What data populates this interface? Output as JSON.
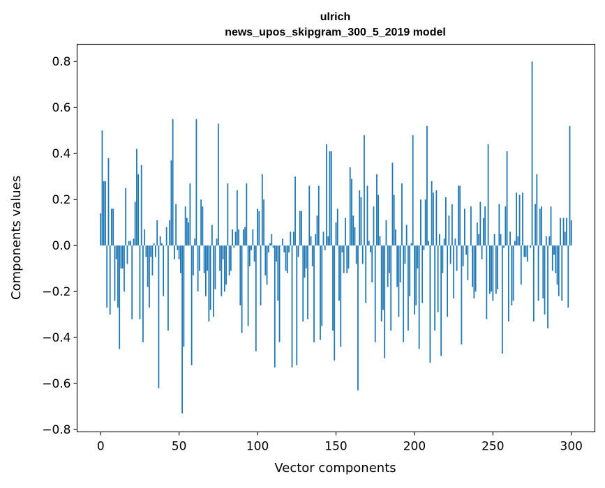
{
  "chart_data": {
    "type": "bar",
    "title": "ulrich",
    "subtitle": "news_upos_skipgram_300_5_2019 model",
    "xlabel": "Vector components",
    "ylabel": "Components values",
    "xlim": [
      -15,
      315
    ],
    "ylim": [
      -0.81,
      0.875
    ],
    "xticks": [
      0,
      50,
      100,
      150,
      200,
      250,
      300
    ],
    "yticks": [
      -0.8,
      -0.6,
      -0.4,
      -0.2,
      0.0,
      0.2,
      0.4,
      0.6,
      0.8
    ],
    "ytick_labels": [
      "−0.8",
      "−0.6",
      "−0.4",
      "−0.2",
      "0.0",
      "0.2",
      "0.4",
      "0.6",
      "0.8"
    ],
    "bar_color": "#1f77b4",
    "values": [
      0.14,
      0.5,
      0.28,
      0.28,
      -0.27,
      0.38,
      -0.3,
      0.16,
      0.16,
      -0.24,
      -0.06,
      -0.27,
      -0.45,
      -0.1,
      -0.1,
      -0.2,
      0.25,
      -0.08,
      0.02,
      0.02,
      -0.32,
      0.03,
      0.19,
      0.42,
      0.31,
      -0.32,
      0.35,
      -0.42,
      0.07,
      -0.05,
      -0.18,
      -0.27,
      -0.05,
      -0.13,
      0.01,
      -0.05,
      0.11,
      -0.62,
      0.04,
      0.01,
      -0.22,
      0.0,
      0.08,
      -0.37,
      0.11,
      0.37,
      0.55,
      -0.06,
      0.18,
      -0.02,
      -0.06,
      -0.12,
      -0.73,
      -0.44,
      0.17,
      0.12,
      0.1,
      0.27,
      -0.52,
      -0.13,
      0.03,
      0.55,
      -0.2,
      -0.11,
      0.2,
      0.17,
      -0.12,
      -0.22,
      -0.11,
      -0.33,
      -0.28,
      0.09,
      -0.31,
      -0.19,
      0.03,
      0.53,
      -0.11,
      -0.22,
      -0.06,
      -0.2,
      -0.17,
      0.27,
      -0.13,
      -0.11,
      0.07,
      -0.01,
      0.06,
      0.24,
      0.07,
      -0.26,
      -0.38,
      0.07,
      0.08,
      0.27,
      -0.35,
      -0.09,
      -0.02,
      0.07,
      -0.07,
      -0.46,
      0.16,
      0.15,
      -0.26,
      0.31,
      0.2,
      -0.13,
      -0.17,
      -0.03,
      0.01,
      0.05,
      -0.01,
      -0.53,
      -0.07,
      -0.24,
      -0.42,
      0.0,
      0.03,
      -0.03,
      -0.11,
      -0.12,
      -0.03,
      0.06,
      -0.53,
      0.06,
      0.3,
      -0.52,
      -0.05,
      0.15,
      0.15,
      -0.33,
      -0.14,
      -0.1,
      -0.32,
      0.26,
      0.04,
      -0.09,
      -0.42,
      0.05,
      0.13,
      0.26,
      -0.41,
      -0.35,
      0.06,
      -0.02,
      0.44,
      0.04,
      0.41,
      0.41,
      -0.37,
      -0.5,
      0.1,
      0.16,
      -0.24,
      -0.44,
      -0.03,
      -0.12,
      0.12,
      -0.12,
      -0.1,
      0.34,
      0.29,
      0.13,
      0.08,
      -0.08,
      -0.63,
      0.24,
      0.21,
      -0.08,
      0.48,
      -0.25,
      0.26,
      0.02,
      -0.03,
      -0.16,
      0.17,
      -0.42,
      0.31,
      0.22,
      0.04,
      -0.33,
      -0.28,
      -0.49,
      0.11,
      -0.18,
      -0.12,
      -0.37,
      0.36,
      0.22,
      0.07,
      -0.18,
      -0.31,
      -0.16,
      0.27,
      -0.42,
      -0.08,
      0.09,
      -0.37,
      -0.22,
      0.01,
      0.48,
      -0.3,
      -0.26,
      -0.1,
      -0.45,
      0.2,
      -0.25,
      -0.02,
      0.2,
      0.52,
      0.02,
      -0.51,
      0.28,
      0.23,
      -0.37,
      0.24,
      -0.29,
      0.05,
      -0.48,
      -0.12,
      0.03,
      0.21,
      -0.31,
      0.13,
      -0.08,
      0.18,
      -0.23,
      0.03,
      -0.11,
      0.26,
      0.26,
      -0.43,
      -0.09,
      0.16,
      -0.04,
      -0.15,
      0.0,
      0.17,
      -0.18,
      -0.23,
      -0.2,
      0.1,
      0.05,
      0.19,
      -0.06,
      0.12,
      0.17,
      -0.32,
      0.44,
      -0.21,
      -0.2,
      -0.24,
      0.05,
      -0.21,
      -0.19,
      0.18,
      0.05,
      -0.47,
      -0.01,
      0.17,
      0.41,
      -0.33,
      0.06,
      -0.26,
      -0.24,
      0.02,
      0.23,
      0.04,
      0.22,
      -0.17,
      0.23,
      -0.05,
      -0.05,
      -0.07,
      0.0,
      -0.01,
      0.8,
      -0.33,
      0.18,
      0.31,
      -0.24,
      0.16,
      0.17,
      -0.23,
      -0.3,
      0.04,
      -0.36,
      0.04,
      0.17,
      -0.11,
      -0.04,
      -0.12,
      -0.17,
      -0.22,
      0.12,
      -0.24,
      0.12,
      0.06,
      0.12,
      -0.27,
      0.52,
      0.11
    ]
  }
}
